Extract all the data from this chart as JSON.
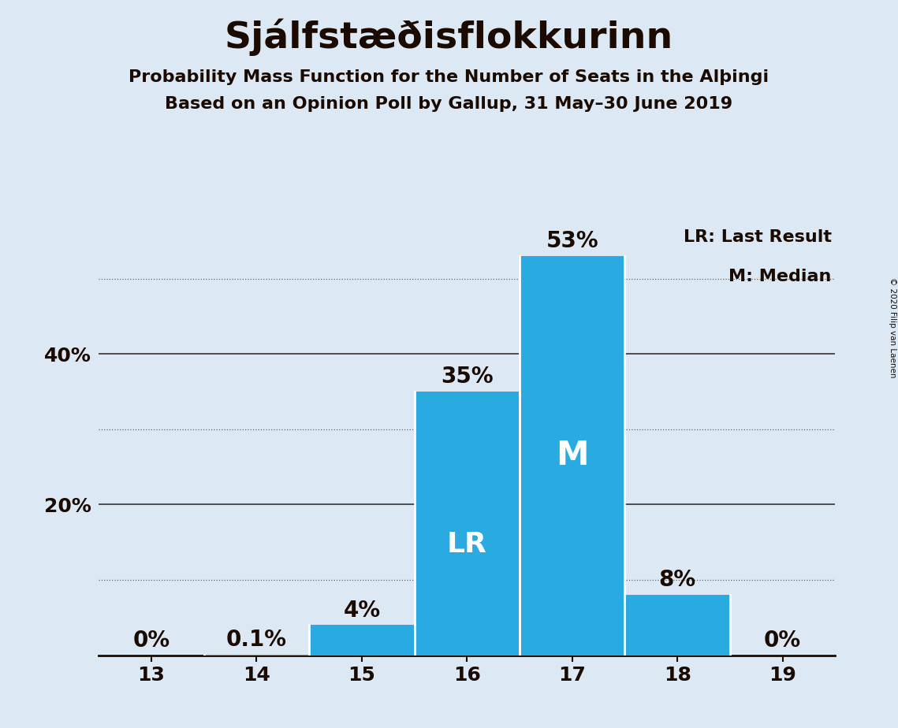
{
  "title": "Sjálfstæðisflokkurinn",
  "subtitle1": "Probability Mass Function for the Number of Seats in the Alþingi",
  "subtitle2": "Based on an Opinion Poll by Gallup, 31 May–30 June 2019",
  "copyright": "© 2020 Filip van Laenen",
  "categories": [
    13,
    14,
    15,
    16,
    17,
    18,
    19
  ],
  "values": [
    0.0,
    0.1,
    4.0,
    35.0,
    53.0,
    8.0,
    0.0
  ],
  "bar_color": "#29ABE2",
  "background_color": "#dce9f5",
  "text_color": "#1a0a00",
  "title_fontsize": 34,
  "subtitle_fontsize": 16,
  "label_fontsize": 20,
  "tick_fontsize": 18,
  "ylabel_ticks": [
    20,
    40
  ],
  "dotted_ticks": [
    10,
    30,
    50
  ],
  "ylim": [
    0,
    58
  ],
  "lr_bar": 16,
  "median_bar": 17,
  "lr_label": "LR",
  "median_label": "M",
  "legend_lr": "LR: Last Result",
  "legend_m": "M: Median",
  "solid_grid_color": "#333333",
  "dotted_grid_color": "#666666",
  "bar_separator_color": "white"
}
